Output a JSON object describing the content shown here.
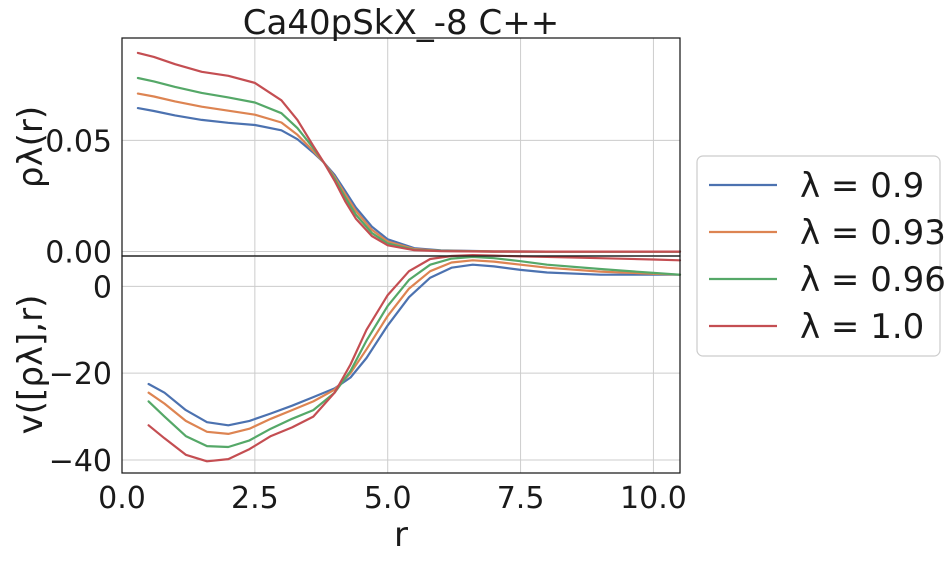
{
  "chart_data": {
    "type": "line",
    "title": "Ca40pSkX_-8 C++",
    "xlabel": "r",
    "xlim": [
      0.0,
      10.5
    ],
    "xticks": [
      "0.0",
      "2.5",
      "5.0",
      "7.5",
      "10.0"
    ],
    "grid": true,
    "legend_position": "outside right",
    "legend": [
      {
        "label": "λ = 0.9",
        "color": "#4c72b0"
      },
      {
        "label": "λ = 0.93",
        "color": "#dd8452"
      },
      {
        "label": "λ = 0.96",
        "color": "#55a868"
      },
      {
        "label": "λ = 1.0",
        "color": "#c44e52"
      }
    ],
    "panels": [
      {
        "name": "density",
        "ylabel": "ρλ(r)",
        "ylim": [
          -0.002,
          0.096
        ],
        "yticks": [
          "0.00",
          "0.05"
        ],
        "series": [
          {
            "name": "λ = 0.9",
            "color": "#4c72b0",
            "x": [
              0.3,
              0.6,
              1.0,
              1.5,
              2.0,
              2.5,
              3.0,
              3.3,
              3.6,
              3.8,
              4.0,
              4.2,
              4.4,
              4.7,
              5.0,
              5.5,
              6.0,
              7.0,
              8.0,
              9.0,
              10.5
            ],
            "y": [
              0.0645,
              0.0632,
              0.0612,
              0.0592,
              0.0579,
              0.0569,
              0.0545,
              0.0505,
              0.0445,
              0.04,
              0.0345,
              0.0272,
              0.0198,
              0.0112,
              0.0055,
              0.0015,
              0.0005,
              0.0001,
              0,
              0,
              0
            ]
          },
          {
            "name": "λ = 0.93",
            "color": "#dd8452",
            "x": [
              0.3,
              0.6,
              1.0,
              1.5,
              2.0,
              2.5,
              3.0,
              3.3,
              3.6,
              3.8,
              4.0,
              4.2,
              4.4,
              4.7,
              5.0,
              5.5,
              6.0,
              7.0,
              8.0,
              9.0,
              10.5
            ],
            "y": [
              0.071,
              0.0697,
              0.0675,
              0.0651,
              0.0633,
              0.0615,
              0.058,
              0.0525,
              0.0452,
              0.04,
              0.0336,
              0.0258,
              0.0183,
              0.0098,
              0.0045,
              0.0011,
              0.0004,
              0.0001,
              0,
              0,
              0
            ]
          },
          {
            "name": "λ = 0.96",
            "color": "#55a868",
            "x": [
              0.3,
              0.6,
              1.0,
              1.5,
              2.0,
              2.5,
              3.0,
              3.3,
              3.6,
              3.8,
              4.0,
              4.2,
              4.4,
              4.7,
              5.0,
              5.5,
              6.0,
              7.0,
              8.0,
              9.0,
              10.5
            ],
            "y": [
              0.078,
              0.0765,
              0.074,
              0.0713,
              0.0693,
              0.067,
              0.0622,
              0.0555,
              0.0465,
              0.04,
              0.0328,
              0.0243,
              0.0166,
              0.0084,
              0.0036,
              0.0008,
              0.0003,
              0,
              0,
              0,
              0
            ]
          },
          {
            "name": "λ = 1.0",
            "color": "#c44e52",
            "x": [
              0.3,
              0.6,
              1.0,
              1.5,
              2.0,
              2.5,
              3.0,
              3.3,
              3.6,
              3.8,
              4.0,
              4.2,
              4.4,
              4.7,
              5.0,
              5.5,
              6.0,
              7.0,
              8.0,
              9.0,
              10.5
            ],
            "y": [
              0.0893,
              0.0875,
              0.0842,
              0.0808,
              0.079,
              0.0758,
              0.068,
              0.0592,
              0.0475,
              0.04,
              0.0318,
              0.0226,
              0.0148,
              0.007,
              0.0028,
              0.0006,
              0.0002,
              0,
              0,
              0,
              0
            ]
          }
        ]
      },
      {
        "name": "potential",
        "ylabel": "v([ρλ],r)",
        "ylim": [
          -43,
          7
        ],
        "yticks": [
          "−40",
          "−20",
          "0"
        ],
        "ytick_values": [
          -40,
          -20,
          0
        ],
        "series": [
          {
            "name": "λ = 0.9",
            "color": "#4c72b0",
            "x": [
              0.5,
              0.8,
              1.2,
              1.6,
              2.0,
              2.4,
              2.8,
              3.2,
              3.6,
              4.0,
              4.3,
              4.6,
              5.0,
              5.4,
              5.8,
              6.2,
              6.6,
              7.0,
              7.5,
              8.0,
              9.0,
              10.0,
              10.5
            ],
            "y": [
              -22.5,
              -24.5,
              -28.5,
              -31.3,
              -32.0,
              -31.0,
              -29.3,
              -27.5,
              -25.5,
              -23.5,
              -21.0,
              -16.5,
              -9.0,
              -2.5,
              2.0,
              4.3,
              5.0,
              4.6,
              3.8,
              3.2,
              2.7,
              2.7,
              2.7
            ]
          },
          {
            "name": "λ = 0.93",
            "color": "#dd8452",
            "x": [
              0.5,
              0.8,
              1.2,
              1.6,
              2.0,
              2.4,
              2.8,
              3.2,
              3.6,
              4.0,
              4.3,
              4.6,
              5.0,
              5.4,
              5.8,
              6.2,
              6.6,
              7.0,
              7.5,
              8.0,
              9.0,
              10.0,
              10.5
            ],
            "y": [
              -24.5,
              -27.0,
              -31.0,
              -33.5,
              -34.0,
              -32.8,
              -30.5,
              -28.5,
              -26.5,
              -23.8,
              -20.0,
              -14.5,
              -6.8,
              -0.5,
              3.5,
              5.5,
              6.0,
              5.7,
              5.0,
              4.3,
              3.4,
              2.9,
              2.7
            ]
          },
          {
            "name": "λ = 0.96",
            "color": "#55a868",
            "x": [
              0.5,
              0.8,
              1.2,
              1.6,
              2.0,
              2.4,
              2.8,
              3.2,
              3.6,
              4.0,
              4.3,
              4.6,
              5.0,
              5.4,
              5.8,
              6.2,
              6.6,
              7.0,
              7.5,
              8.0,
              9.0,
              10.0,
              10.5
            ],
            "y": [
              -26.5,
              -30.0,
              -34.5,
              -36.8,
              -37.0,
              -35.5,
              -32.8,
              -30.5,
              -28.5,
              -24.5,
              -19.5,
              -12.5,
              -4.5,
              1.5,
              5.0,
              6.4,
              6.8,
              6.5,
              5.8,
              5.0,
              4.0,
              3.1,
              2.7
            ]
          },
          {
            "name": "λ = 1.0",
            "color": "#c44e52",
            "x": [
              0.5,
              0.8,
              1.2,
              1.6,
              2.0,
              2.4,
              2.8,
              3.2,
              3.6,
              4.0,
              4.3,
              4.6,
              5.0,
              5.4,
              5.8,
              6.2,
              6.6,
              7.0,
              7.5,
              8.0,
              9.0,
              10.0,
              10.5
            ],
            "y": [
              -32.0,
              -35.0,
              -38.8,
              -40.3,
              -39.8,
              -37.5,
              -34.5,
              -32.5,
              -30.0,
              -24.5,
              -18.0,
              -10.0,
              -2.0,
              3.5,
              6.3,
              7.0,
              7.2,
              7.1,
              6.9,
              6.8,
              6.5,
              6.2,
              6.0
            ]
          }
        ]
      }
    ]
  }
}
